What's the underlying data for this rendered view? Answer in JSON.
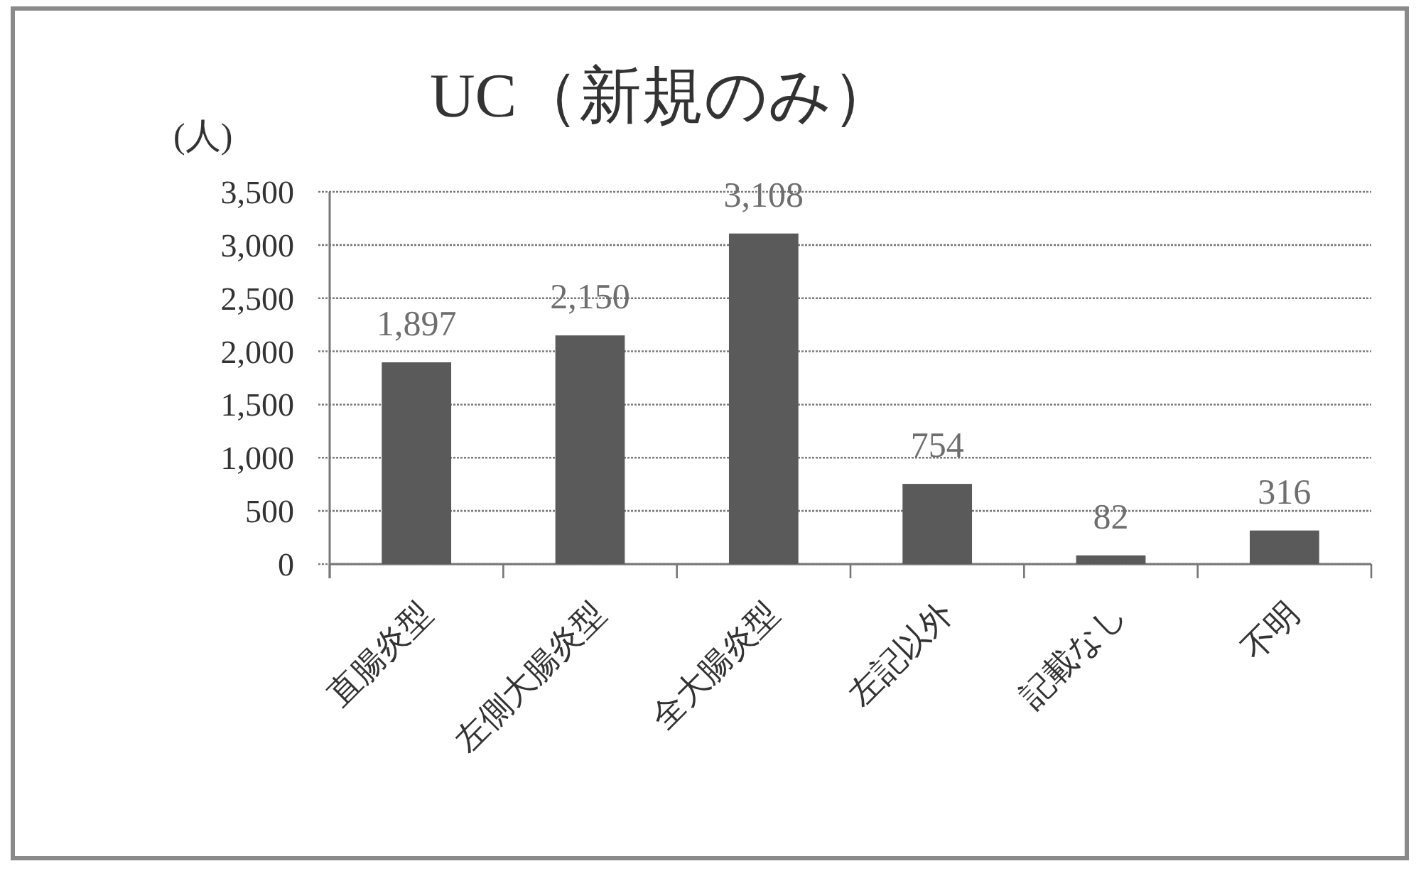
{
  "chart_data": {
    "type": "bar",
    "title": "UC（新規のみ）",
    "ylabel": "(人)",
    "categories": [
      "直腸炎型",
      "左側大腸炎型",
      "全大腸炎型",
      "左記以外",
      "記載なし",
      "不明"
    ],
    "values": [
      1897,
      2150,
      3108,
      754,
      82,
      316
    ],
    "color": "#5a5a5a",
    "value_labels": [
      "1,897",
      "2,150",
      "3,108",
      "754",
      "82",
      "316"
    ],
    "ylim": [
      0,
      3500
    ],
    "yticks": [
      {
        "value": 0,
        "label": "0"
      },
      {
        "value": 500,
        "label": "500"
      },
      {
        "value": 1000,
        "label": "1,000"
      },
      {
        "value": 1500,
        "label": "1,500"
      },
      {
        "value": 2000,
        "label": "2,000"
      },
      {
        "value": 2500,
        "label": "2,500"
      },
      {
        "value": 3000,
        "label": "3,000"
      },
      {
        "value": 3500,
        "label": "3,500"
      }
    ],
    "grid": "y"
  }
}
